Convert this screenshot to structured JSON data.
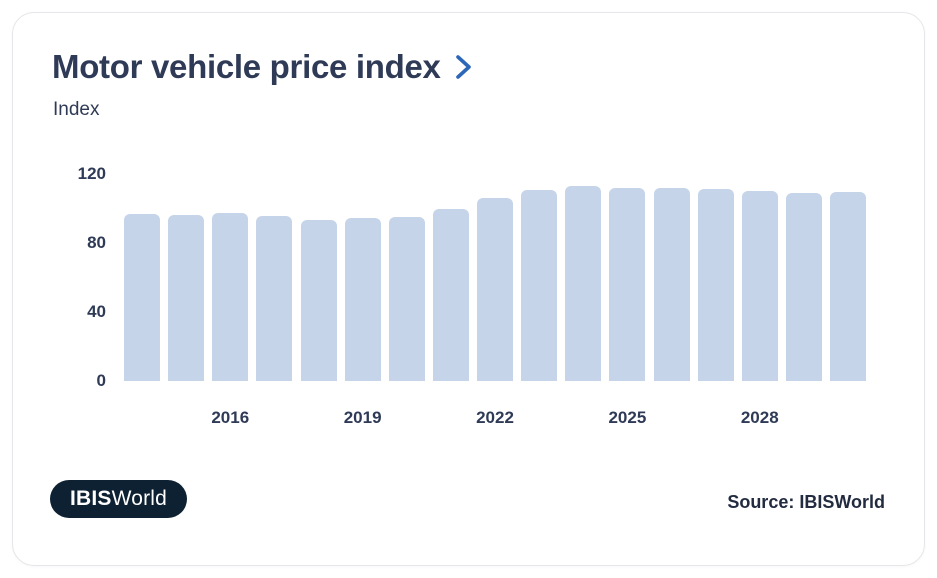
{
  "header": {
    "title": "Motor vehicle price index",
    "subtitle": "Index"
  },
  "chart_data": {
    "type": "bar",
    "title": "Motor vehicle price index",
    "ylabel": "Index",
    "xlabel": "",
    "categories": [
      2014,
      2015,
      2016,
      2017,
      2018,
      2019,
      2020,
      2021,
      2022,
      2023,
      2024,
      2025,
      2026,
      2027,
      2028,
      2029,
      2030
    ],
    "values": [
      96.8,
      95.9,
      97.4,
      95.5,
      93.2,
      94.4,
      95.1,
      99.7,
      106.1,
      110.6,
      112.9,
      111.7,
      111.7,
      111.0,
      110.2,
      108.7,
      109.4
    ],
    "ylim": [
      0,
      120
    ],
    "y_ticks": [
      120,
      80,
      40,
      0
    ],
    "x_tick_labels": [
      2016,
      2019,
      2022,
      2025,
      2028
    ],
    "grid": false,
    "legend": "none",
    "bar_color": "#c5d4e9"
  },
  "footer": {
    "logo_bold": "IBIS",
    "logo_regular": "World",
    "source": "Source: IBISWorld"
  },
  "colors": {
    "text_dark": "#2e3a56",
    "accent_blue": "#2d68b8",
    "bar_fill": "#c5d4e9",
    "logo_bg": "#0e2133",
    "card_border": "#e6e6ea"
  }
}
